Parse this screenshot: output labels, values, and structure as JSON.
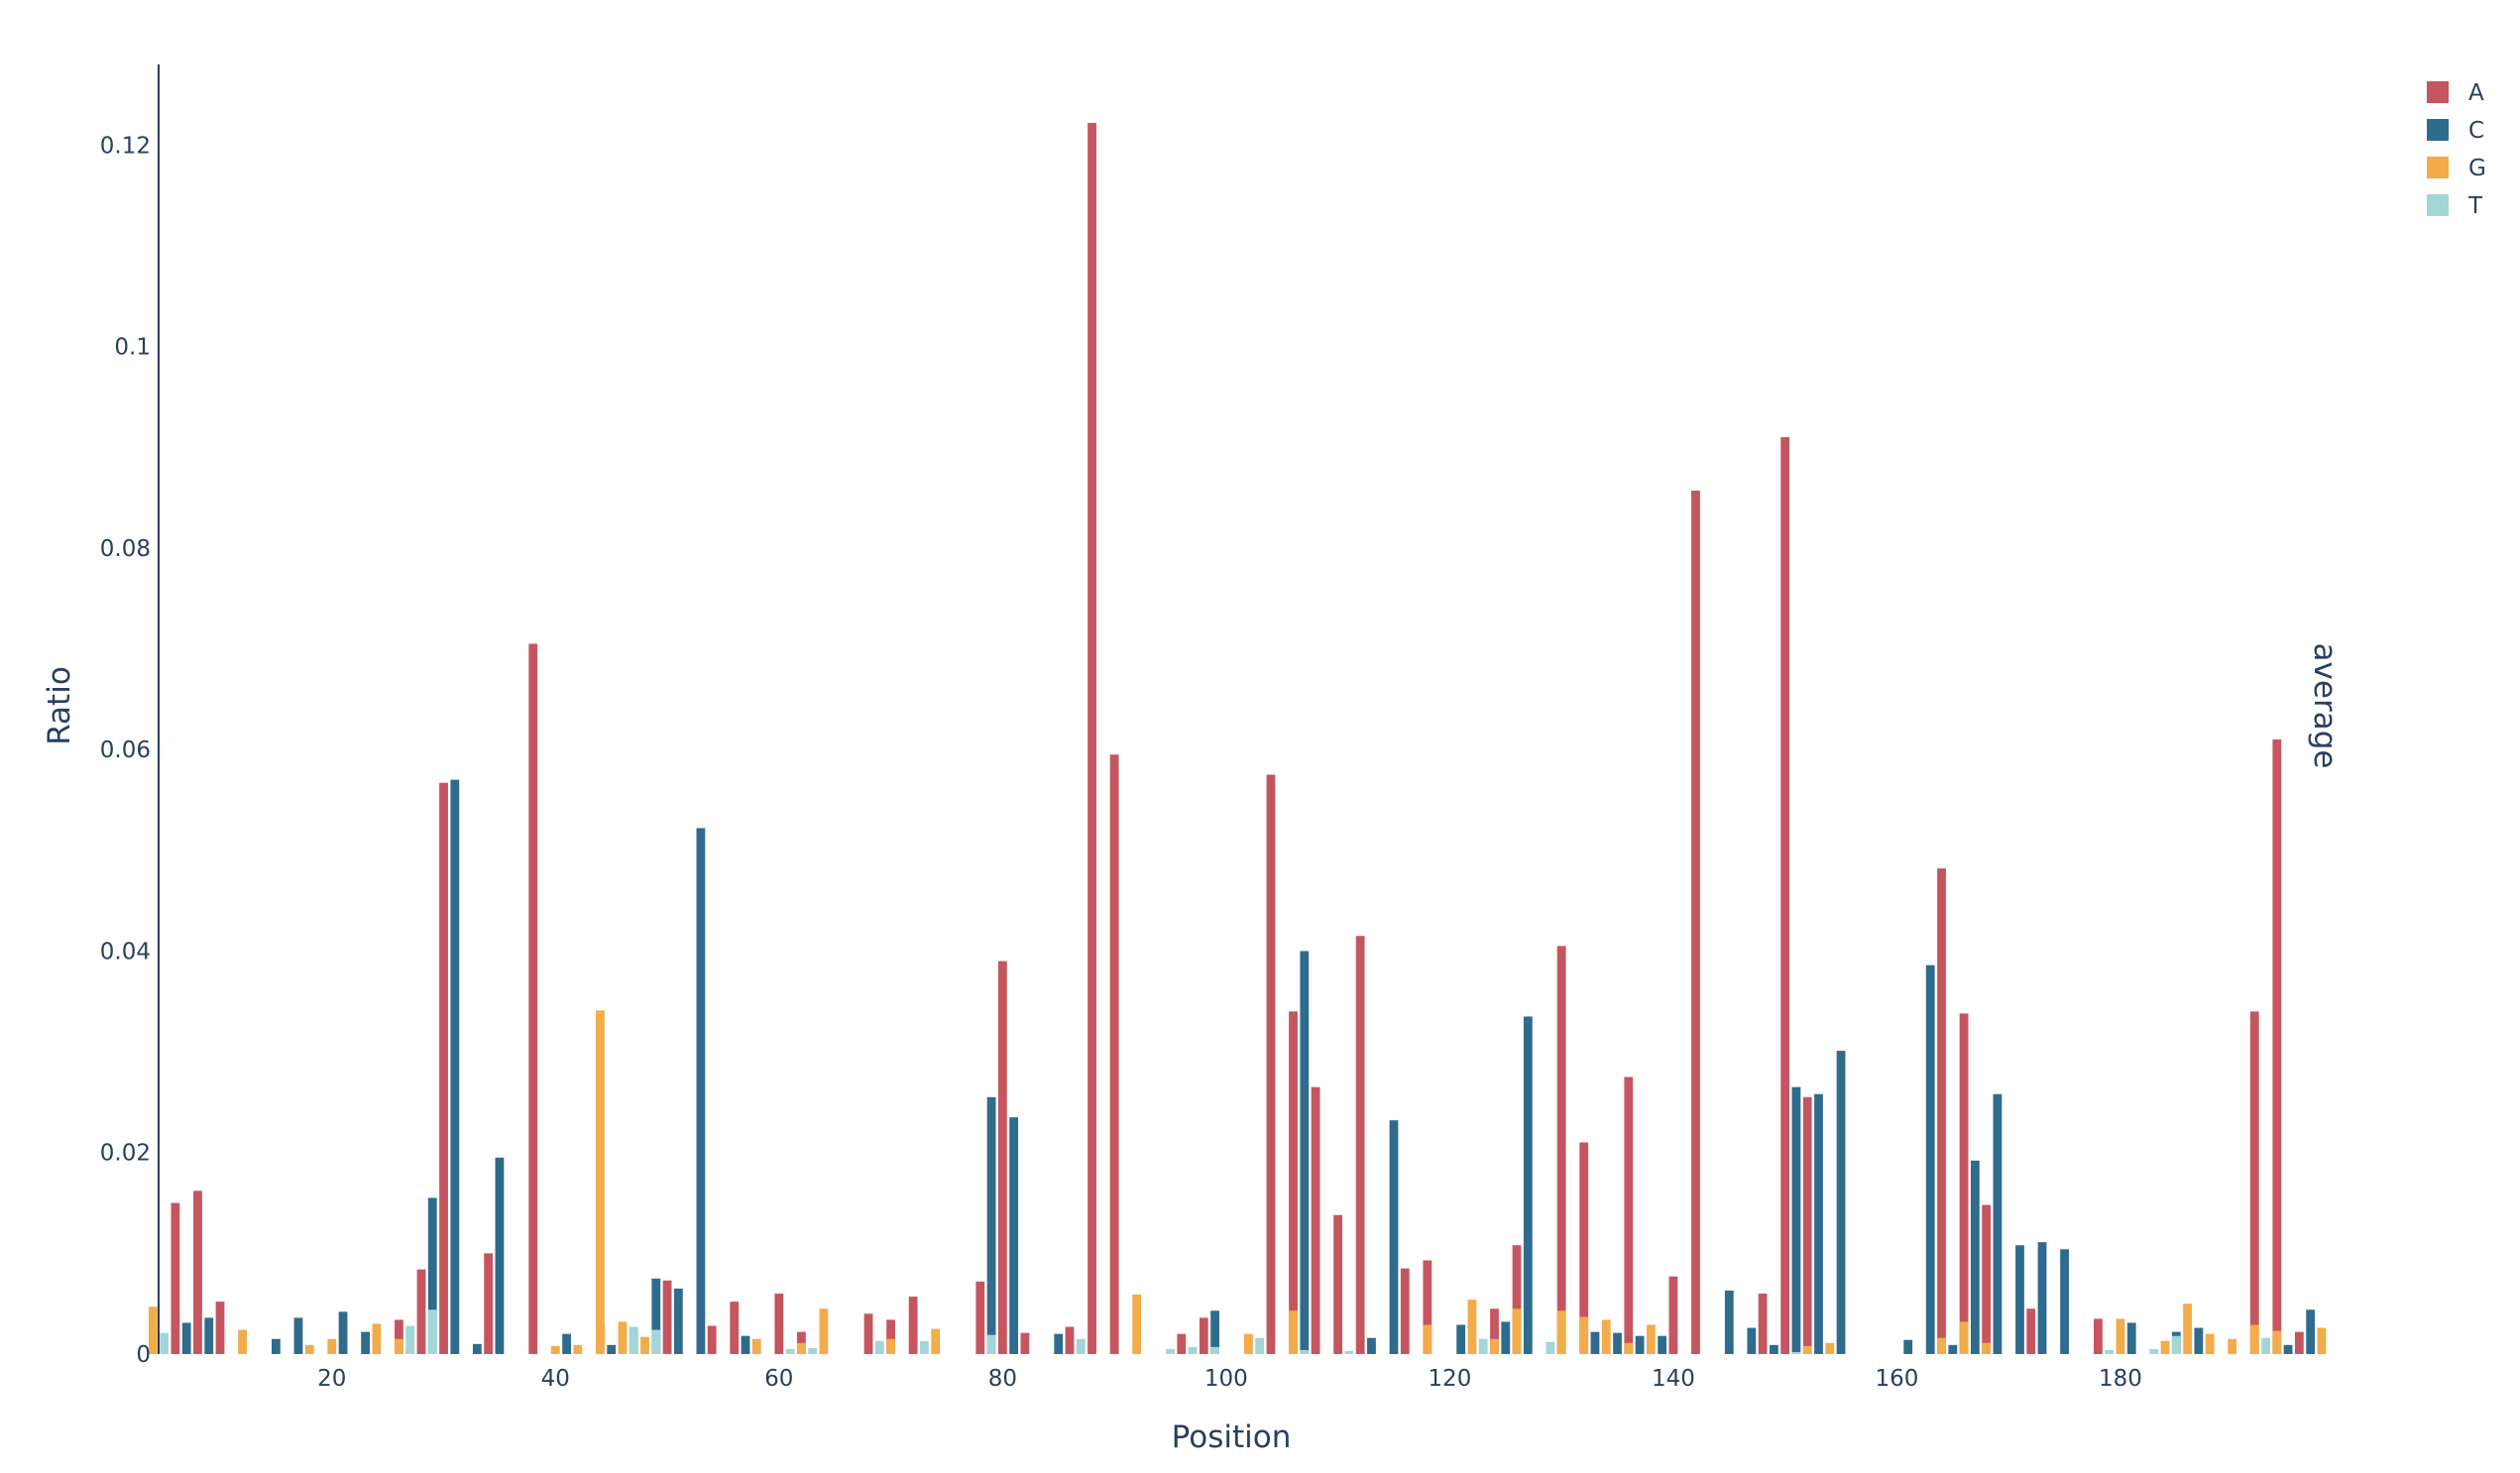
{
  "chart_data": {
    "type": "bar",
    "xlabel": "Position",
    "ylabel": "Ratio",
    "right_annotation": "average",
    "ylim": [
      0,
      0.128
    ],
    "xlim": [
      4.5,
      196.5
    ],
    "xticks": [
      20,
      40,
      60,
      80,
      100,
      120,
      140,
      160,
      180
    ],
    "xtick_labels": [
      "20",
      "40",
      "60",
      "80",
      "100",
      "120",
      "140",
      "160",
      "180"
    ],
    "yticks": [
      0,
      0.02,
      0.04,
      0.06,
      0.08,
      0.1,
      0.12
    ],
    "ytick_labels": [
      "0",
      "0.02",
      "0.04",
      "0.06",
      "0.08",
      "0.1",
      "0.12"
    ],
    "grid": false,
    "legend_position": "top-right",
    "barmode": "group",
    "series": [
      {
        "name": "A",
        "color": "#c5555f",
        "points": [
          [
            6,
            0.015
          ],
          [
            8,
            0.0162
          ],
          [
            10,
            0.0052
          ],
          [
            26,
            0.0034
          ],
          [
            28,
            0.0084
          ],
          [
            30,
            0.0567
          ],
          [
            34,
            0.01
          ],
          [
            38,
            0.0705
          ],
          [
            44,
            0.003
          ],
          [
            50,
            0.0073
          ],
          [
            54,
            0.0028
          ],
          [
            56,
            0.0052
          ],
          [
            60,
            0.006
          ],
          [
            62,
            0.0022
          ],
          [
            68,
            0.004
          ],
          [
            70,
            0.0034
          ],
          [
            72,
            0.0057
          ],
          [
            78,
            0.0072
          ],
          [
            80,
            0.039
          ],
          [
            82,
            0.0021
          ],
          [
            86,
            0.0027
          ],
          [
            88,
            0.1222
          ],
          [
            90,
            0.0595
          ],
          [
            96,
            0.002
          ],
          [
            98,
            0.0036
          ],
          [
            104,
            0.0575
          ],
          [
            106,
            0.034
          ],
          [
            108,
            0.0265
          ],
          [
            110,
            0.0138
          ],
          [
            112,
            0.0415
          ],
          [
            116,
            0.0085
          ],
          [
            118,
            0.0093
          ],
          [
            124,
            0.0045
          ],
          [
            126,
            0.0108
          ],
          [
            130,
            0.0405
          ],
          [
            132,
            0.021
          ],
          [
            136,
            0.0275
          ],
          [
            140,
            0.0077
          ],
          [
            142,
            0.0857
          ],
          [
            148,
            0.006
          ],
          [
            150,
            0.091
          ],
          [
            152,
            0.0255
          ],
          [
            164,
            0.0482
          ],
          [
            166,
            0.0338
          ],
          [
            168,
            0.0148
          ],
          [
            172,
            0.0045
          ],
          [
            178,
            0.0035
          ],
          [
            192,
            0.034
          ],
          [
            194,
            0.061
          ],
          [
            196,
            0.0022
          ]
        ]
      },
      {
        "name": "C",
        "color": "#2f6b8c",
        "points": [
          [
            7,
            0.0031
          ],
          [
            9,
            0.0036
          ],
          [
            15,
            0.0015
          ],
          [
            17,
            0.0036
          ],
          [
            21,
            0.0042
          ],
          [
            23,
            0.0022
          ],
          [
            27,
            0.0004
          ],
          [
            29,
            0.0155
          ],
          [
            31,
            0.057
          ],
          [
            33,
            0.001
          ],
          [
            35,
            0.0195
          ],
          [
            41,
            0.002
          ],
          [
            45,
            0.0009
          ],
          [
            47,
            0.0024
          ],
          [
            49,
            0.0075
          ],
          [
            51,
            0.0065
          ],
          [
            53,
            0.0522
          ],
          [
            57,
            0.0018
          ],
          [
            79,
            0.0255
          ],
          [
            81,
            0.0235
          ],
          [
            85,
            0.002
          ],
          [
            99,
            0.0043
          ],
          [
            107,
            0.04
          ],
          [
            113,
            0.0016
          ],
          [
            115,
            0.0232
          ],
          [
            121,
            0.0029
          ],
          [
            125,
            0.0032
          ],
          [
            127,
            0.0335
          ],
          [
            133,
            0.0022
          ],
          [
            135,
            0.0021
          ],
          [
            137,
            0.0018
          ],
          [
            139,
            0.0018
          ],
          [
            145,
            0.0063
          ],
          [
            147,
            0.0026
          ],
          [
            149,
            0.0009
          ],
          [
            151,
            0.0265
          ],
          [
            153,
            0.0258
          ],
          [
            155,
            0.0301
          ],
          [
            161,
            0.0014
          ],
          [
            163,
            0.0386
          ],
          [
            165,
            0.0009
          ],
          [
            167,
            0.0192
          ],
          [
            169,
            0.0258
          ],
          [
            171,
            0.0108
          ],
          [
            173,
            0.0111
          ],
          [
            175,
            0.0104
          ],
          [
            181,
            0.0031
          ],
          [
            185,
            0.0022
          ],
          [
            187,
            0.0026
          ],
          [
            195,
            0.0009
          ],
          [
            197,
            0.0044
          ]
        ]
      },
      {
        "name": "G",
        "color": "#f2ac4a",
        "points": [
          [
            4,
            0.0047
          ],
          [
            12,
            0.0024
          ],
          [
            18,
            0.0009
          ],
          [
            20,
            0.0015
          ],
          [
            24,
            0.003
          ],
          [
            26,
            0.0015
          ],
          [
            40,
            0.0008
          ],
          [
            42,
            0.0009
          ],
          [
            44,
            0.0341
          ],
          [
            46,
            0.0032
          ],
          [
            48,
            0.0017
          ],
          [
            58,
            0.0015
          ],
          [
            62,
            0.0011
          ],
          [
            64,
            0.0045
          ],
          [
            70,
            0.0015
          ],
          [
            74,
            0.0025
          ],
          [
            92,
            0.0059
          ],
          [
            102,
            0.002
          ],
          [
            106,
            0.0043
          ],
          [
            118,
            0.0029
          ],
          [
            122,
            0.0054
          ],
          [
            124,
            0.0015
          ],
          [
            126,
            0.0045
          ],
          [
            130,
            0.0043
          ],
          [
            132,
            0.0037
          ],
          [
            134,
            0.0034
          ],
          [
            136,
            0.0011
          ],
          [
            138,
            0.0029
          ],
          [
            152,
            0.0008
          ],
          [
            154,
            0.0011
          ],
          [
            164,
            0.0016
          ],
          [
            166,
            0.0032
          ],
          [
            168,
            0.0011
          ],
          [
            180,
            0.0035
          ],
          [
            184,
            0.0013
          ],
          [
            186,
            0.005
          ],
          [
            188,
            0.002
          ],
          [
            190,
            0.0015
          ],
          [
            192,
            0.0029
          ],
          [
            194,
            0.0023
          ],
          [
            198,
            0.0026
          ]
        ]
      },
      {
        "name": "T",
        "color": "#a3d6d6",
        "points": [
          [
            5,
            0.0021
          ],
          [
            27,
            0.0028
          ],
          [
            29,
            0.0044
          ],
          [
            47,
            0.0027
          ],
          [
            49,
            0.0024
          ],
          [
            61,
            0.0005
          ],
          [
            63,
            0.0006
          ],
          [
            69,
            0.0013
          ],
          [
            73,
            0.0013
          ],
          [
            79,
            0.0019
          ],
          [
            87,
            0.0015
          ],
          [
            95,
            0.0005
          ],
          [
            97,
            0.0007
          ],
          [
            99,
            0.0007
          ],
          [
            103,
            0.0016
          ],
          [
            107,
            0.0004
          ],
          [
            111,
            0.0003
          ],
          [
            123,
            0.0015
          ],
          [
            129,
            0.0012
          ],
          [
            151,
            0.0002
          ],
          [
            179,
            0.0004
          ],
          [
            183,
            0.0005
          ],
          [
            185,
            0.0018
          ],
          [
            193,
            0.0016
          ]
        ]
      }
    ]
  }
}
